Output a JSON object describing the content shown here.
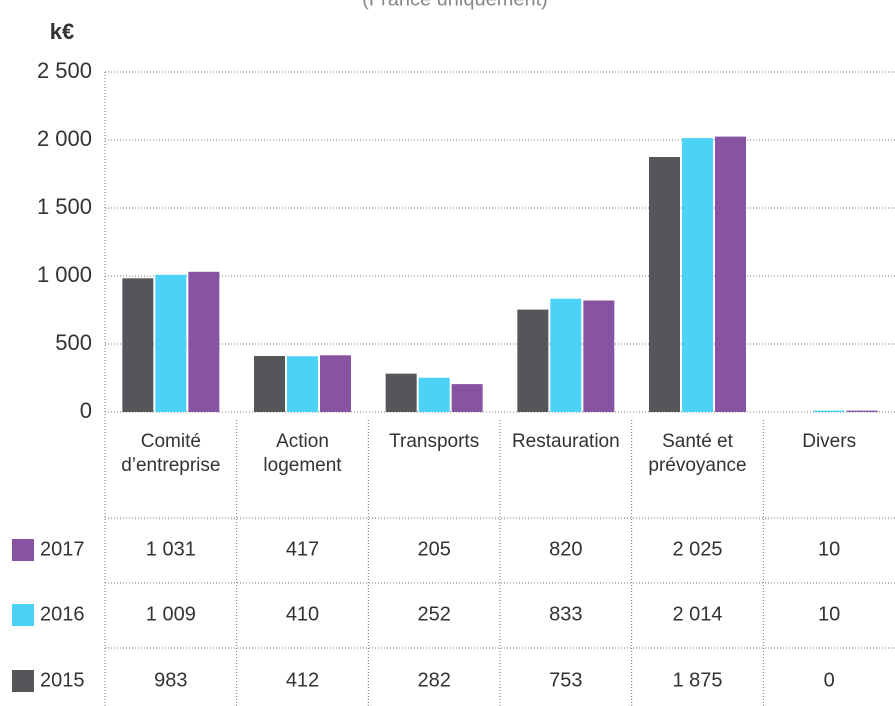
{
  "chart_data": {
    "type": "bar",
    "subtitle": "(France uniquement)",
    "y_label": "k€",
    "categories": [
      "Comité\nd’entreprise",
      "Action\nlogement",
      "Transports",
      "Restauration",
      "Santé et\nprévoyance",
      "Divers"
    ],
    "series": [
      {
        "name": "2015",
        "color": "#545659",
        "values": [
          983,
          412,
          282,
          753,
          1875,
          0
        ],
        "value_labels": [
          "983",
          "412",
          "282",
          "753",
          "1 875",
          "0"
        ]
      },
      {
        "name": "2016",
        "color": "#4dd2f7",
        "values": [
          1009,
          410,
          252,
          833,
          2014,
          10
        ],
        "value_labels": [
          "1 009",
          "410",
          "252",
          "833",
          "2 014",
          "10"
        ]
      },
      {
        "name": "2017",
        "color": "#8953a3",
        "values": [
          1031,
          417,
          205,
          820,
          2025,
          10
        ],
        "value_labels": [
          "1 031",
          "417",
          "205",
          "820",
          "2 025",
          "10"
        ]
      }
    ],
    "ylim": [
      0,
      2500
    ],
    "yticks": [
      0,
      500,
      {
        "value": 1000,
        "label": "1 000"
      },
      {
        "value": 1500,
        "label": "1 500"
      },
      {
        "value": 2000,
        "label": "2 000"
      },
      {
        "value": 2500,
        "label": "2 500"
      }
    ],
    "grid": true
  }
}
